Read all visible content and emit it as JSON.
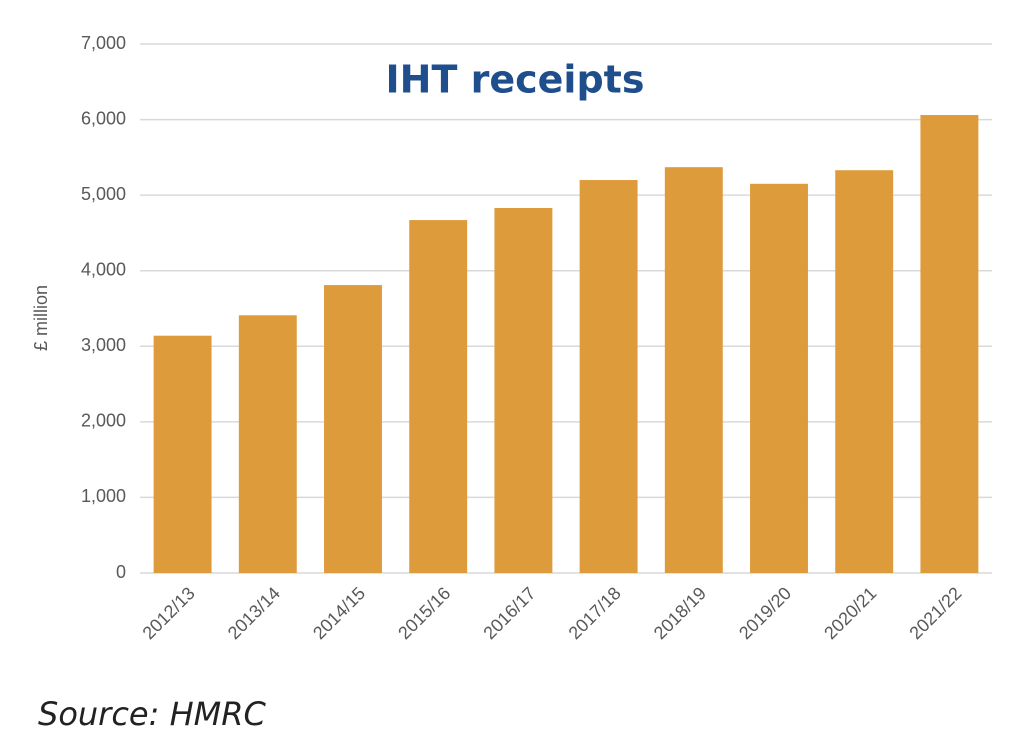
{
  "chart_data": {
    "type": "bar",
    "title": "IHT receipts",
    "y_label": "£ million",
    "source": "Source: HMRC",
    "categories": [
      "2012/13",
      "2013/14",
      "2014/15",
      "2015/16",
      "2016/17",
      "2017/18",
      "2018/19",
      "2019/20",
      "2020/21",
      "2021/22"
    ],
    "values": [
      3140,
      3410,
      3810,
      4670,
      4830,
      5200,
      5370,
      5150,
      5330,
      6060
    ],
    "color": "#de9b3c",
    "ylim": [
      0,
      7000
    ],
    "yticks": [
      0,
      {
        "value": 1000,
        "label": "1,000"
      },
      {
        "value": 2000,
        "label": "2,000"
      },
      {
        "value": 3000,
        "label": "3,000"
      },
      {
        "value": 4000,
        "label": "4,000"
      },
      {
        "value": 5000,
        "label": "5,000"
      },
      {
        "value": 6000,
        "label": "6,000"
      },
      {
        "value": 7000,
        "label": "7,000"
      }
    ],
    "grid": true
  }
}
